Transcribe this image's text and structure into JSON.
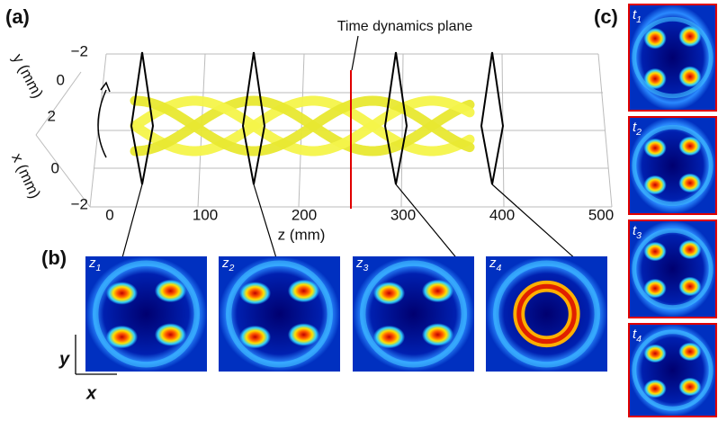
{
  "panel_a": {
    "label": "(a)",
    "annotation": "Time dynamics plane",
    "z_axis_label": "z (mm)",
    "z_ticks": [
      "0",
      "100",
      "200",
      "300",
      "400",
      "500"
    ],
    "y_axis_label": "y (mm)",
    "y_ticks": [
      "−2",
      "0",
      "2"
    ],
    "x_axis_label": "x (mm)",
    "x_ticks": [
      "0",
      "−2"
    ]
  },
  "panel_b": {
    "label": "(b)",
    "images": [
      {
        "symbol": "z",
        "index": "1"
      },
      {
        "symbol": "z",
        "index": "2"
      },
      {
        "symbol": "z",
        "index": "3"
      },
      {
        "symbol": "z",
        "index": "4"
      }
    ],
    "axis_y": "y",
    "axis_x": "x"
  },
  "panel_c": {
    "label": "(c)",
    "images": [
      {
        "symbol": "t",
        "index": "1"
      },
      {
        "symbol": "t",
        "index": "2"
      },
      {
        "symbol": "t",
        "index": "3"
      },
      {
        "symbol": "t",
        "index": "4"
      }
    ]
  }
}
